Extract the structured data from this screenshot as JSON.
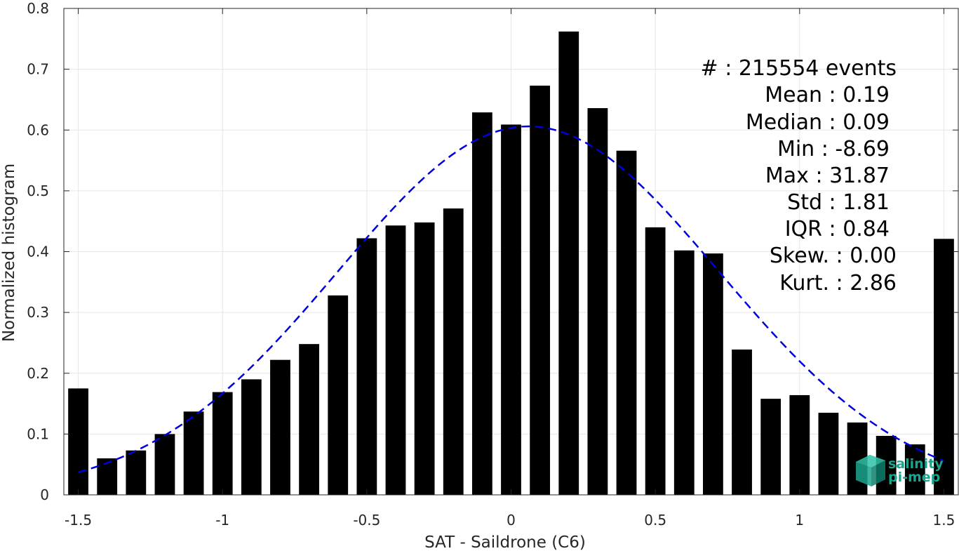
{
  "chart_data": {
    "type": "bar",
    "xlabel": "SAT - Saildrone (C6)",
    "ylabel": "Normalized histogram",
    "xlim": [
      -1.55,
      1.55
    ],
    "ylim": [
      0,
      0.8
    ],
    "xticks": [
      "-1.5",
      "-1",
      "-0.5",
      "0",
      "0.5",
      "1",
      "1.5"
    ],
    "xtick_values": [
      -1.5,
      -1,
      -0.5,
      0,
      0.5,
      1,
      1.5
    ],
    "yticks": [
      "0",
      "0.1",
      "0.2",
      "0.3",
      "0.4",
      "0.5",
      "0.6",
      "0.7",
      "0.8"
    ],
    "ytick_values": [
      0,
      0.1,
      0.2,
      0.3,
      0.4,
      0.5,
      0.6,
      0.7,
      0.8
    ],
    "grid": true,
    "bar_width": 0.07,
    "bar_color": "#000000",
    "bins": {
      "x": [
        -1.5,
        -1.4,
        -1.3,
        -1.2,
        -1.1,
        -1.0,
        -0.9,
        -0.8,
        -0.7,
        -0.6,
        -0.5,
        -0.4,
        -0.3,
        -0.2,
        -0.1,
        0.0,
        0.1,
        0.2,
        0.3,
        0.4,
        0.5,
        0.6,
        0.7,
        0.8,
        0.9,
        1.0,
        1.1,
        1.2,
        1.3,
        1.4,
        1.5
      ],
      "values": [
        0.175,
        0.06,
        0.073,
        0.1,
        0.137,
        0.169,
        0.19,
        0.222,
        0.248,
        0.328,
        0.422,
        0.443,
        0.448,
        0.471,
        0.629,
        0.609,
        0.673,
        0.762,
        0.636,
        0.566,
        0.44,
        0.402,
        0.397,
        0.239,
        0.158,
        0.164,
        0.135,
        0.119,
        0.097,
        0.083,
        0.421
      ]
    },
    "fit": {
      "style": "dashed",
      "color": "#0000dd",
      "mean": 0.06,
      "std": 0.66,
      "peak": 0.606,
      "x_range": [
        -1.5,
        1.5
      ]
    },
    "stats": [
      {
        "label": "#  : 215554 events"
      },
      {
        "label": "Mean : 0.19"
      },
      {
        "label": "Median : 0.09"
      },
      {
        "label": "Min : -8.69"
      },
      {
        "label": "Max : 31.87"
      },
      {
        "label": "Std : 1.81"
      },
      {
        "label": "IQR : 0.84"
      },
      {
        "label": "Skew. : 0.00"
      },
      {
        "label": "Kurt. : 2.86"
      }
    ]
  },
  "logo": {
    "line1": "salinity",
    "line2": "pi-mep",
    "color": "#1aa58f"
  }
}
